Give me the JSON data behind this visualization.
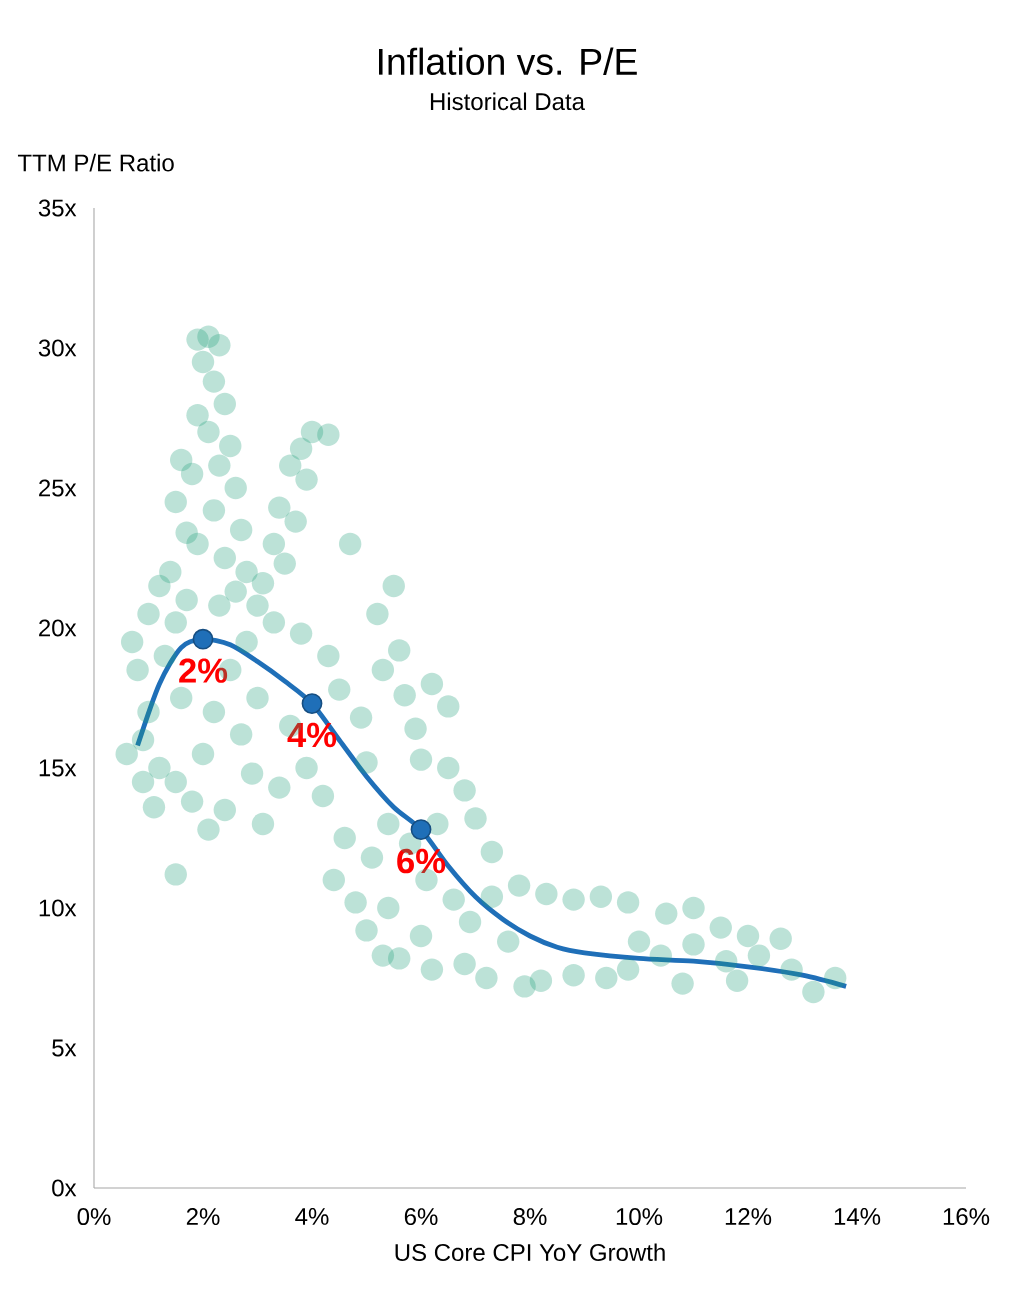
{
  "chart_data": {
    "type": "scatter",
    "title": "Inflation vs. P/E",
    "subtitle": "Historical Data",
    "xlabel": "US Core CPI YoY Growth",
    "ylabel": "TTM P/E Ratio",
    "xlim": [
      0,
      16
    ],
    "ylim": [
      0,
      35
    ],
    "xticks": [
      {
        "value": 0,
        "label": "0%"
      },
      {
        "value": 2,
        "label": "2%"
      },
      {
        "value": 4,
        "label": "4%"
      },
      {
        "value": 6,
        "label": "6%"
      },
      {
        "value": 8,
        "label": "8%"
      },
      {
        "value": 10,
        "label": "10%"
      },
      {
        "value": 12,
        "label": "12%"
      },
      {
        "value": 14,
        "label": "14%"
      },
      {
        "value": 16,
        "label": "16%"
      }
    ],
    "yticks": [
      {
        "value": 0,
        "label": "0x"
      },
      {
        "value": 5,
        "label": "5x"
      },
      {
        "value": 10,
        "label": "10x"
      },
      {
        "value": 15,
        "label": "15x"
      },
      {
        "value": 20,
        "label": "20x"
      },
      {
        "value": 25,
        "label": "25x"
      },
      {
        "value": 30,
        "label": "30x"
      },
      {
        "value": 35,
        "label": "35x"
      }
    ],
    "grid": false,
    "series": [
      {
        "marker": "circle",
        "color": "#21a07a",
        "x": [
          1.9,
          2.1,
          2.3,
          2.0,
          2.2,
          2.4,
          1.9,
          2.1,
          2.5,
          2.3,
          1.8,
          2.6,
          2.2,
          2.7,
          1.9,
          2.4,
          2.8,
          1.6,
          1.5,
          1.7,
          4.0,
          4.3,
          3.8,
          3.6,
          3.9,
          3.4,
          3.7,
          3.3,
          3.5,
          3.1,
          3.0,
          3.3,
          0.7,
          0.8,
          1.0,
          1.2,
          1.4,
          1.0,
          0.6,
          0.9,
          1.3,
          1.5,
          1.7,
          1.2,
          1.5,
          1.8,
          2.0,
          2.2,
          2.5,
          2.8,
          3.0,
          2.7,
          1.6,
          2.1,
          1.5,
          2.4,
          3.1,
          3.4,
          2.9,
          1.1,
          0.9,
          2.3,
          2.6,
          3.8,
          4.3,
          4.5,
          3.6,
          3.9,
          4.2,
          4.6,
          4.4,
          4.8,
          5.0,
          5.3,
          5.1,
          5.4,
          5.0,
          4.9,
          5.3,
          5.6,
          5.7,
          5.9,
          6.2,
          6.5,
          6.0,
          6.5,
          6.8,
          7.0,
          7.3,
          6.3,
          5.8,
          6.1,
          6.6,
          6.9,
          6.0,
          5.6,
          6.2,
          6.8,
          7.2,
          7.6,
          7.3,
          5.5,
          4.7,
          5.2,
          5.4,
          7.8,
          8.3,
          8.8,
          9.3,
          9.8,
          10.5,
          11.0,
          11.5,
          12.0,
          12.6,
          8.2,
          8.8,
          9.4,
          10.0,
          10.4,
          11.0,
          11.6,
          12.2,
          12.8,
          13.2,
          13.6,
          10.8,
          9.8,
          11.8,
          7.9
        ],
        "values": [
          30.3,
          30.4,
          30.1,
          29.5,
          28.8,
          28.0,
          27.6,
          27.0,
          26.5,
          25.8,
          25.5,
          25.0,
          24.2,
          23.5,
          23.0,
          22.5,
          22.0,
          26.0,
          24.5,
          23.4,
          27.0,
          26.9,
          26.4,
          25.8,
          25.3,
          24.3,
          23.8,
          23.0,
          22.3,
          21.6,
          20.8,
          20.2,
          19.5,
          18.5,
          20.5,
          21.5,
          22.0,
          17.0,
          15.5,
          16.0,
          19.0,
          20.2,
          21.0,
          15.0,
          14.5,
          13.8,
          15.5,
          17.0,
          18.5,
          19.5,
          17.5,
          16.2,
          17.5,
          12.8,
          11.2,
          13.5,
          13.0,
          14.3,
          14.8,
          13.6,
          14.5,
          20.8,
          21.3,
          19.8,
          19.0,
          17.8,
          16.5,
          15.0,
          14.0,
          12.5,
          11.0,
          10.2,
          9.2,
          8.3,
          11.8,
          13.0,
          15.2,
          16.8,
          18.5,
          19.2,
          17.6,
          16.4,
          18.0,
          17.2,
          15.3,
          15.0,
          14.2,
          13.2,
          12.0,
          13.0,
          12.3,
          11.0,
          10.3,
          9.5,
          9.0,
          8.2,
          7.8,
          8.0,
          7.5,
          8.8,
          10.4,
          21.5,
          23.0,
          20.5,
          10.0,
          10.8,
          10.5,
          10.3,
          10.4,
          10.2,
          9.8,
          10.0,
          9.3,
          9.0,
          8.9,
          7.4,
          7.6,
          7.5,
          8.8,
          8.3,
          8.7,
          8.1,
          8.3,
          7.8,
          7.0,
          7.5,
          7.3,
          7.8,
          7.4,
          7.2
        ]
      },
      {
        "type": "line",
        "marker": "none",
        "color": "#1f6fb8",
        "x": [
          0.8,
          1.2,
          1.6,
          2.0,
          2.5,
          3.0,
          3.5,
          4.0,
          4.5,
          5.0,
          5.5,
          6.0,
          6.5,
          7.0,
          7.5,
          8.0,
          8.5,
          9.0,
          10.0,
          11.0,
          12.0,
          13.0,
          13.8
        ],
        "values": [
          15.8,
          18.0,
          19.3,
          19.6,
          19.4,
          18.8,
          18.1,
          17.3,
          16.0,
          14.7,
          13.6,
          12.8,
          11.5,
          10.4,
          9.6,
          9.0,
          8.6,
          8.4,
          8.2,
          8.1,
          7.9,
          7.6,
          7.2
        ]
      },
      {
        "type": "scatter",
        "marker": "circle",
        "color": "#1f6fb8",
        "x": [
          2,
          4,
          6
        ],
        "values": [
          19.6,
          17.3,
          12.8
        ]
      }
    ],
    "annotations": [
      {
        "text": "2%",
        "x": 2,
        "y": 19.6
      },
      {
        "text": "4%",
        "x": 4,
        "y": 17.3
      },
      {
        "text": "6%",
        "x": 6,
        "y": 12.8
      }
    ]
  }
}
